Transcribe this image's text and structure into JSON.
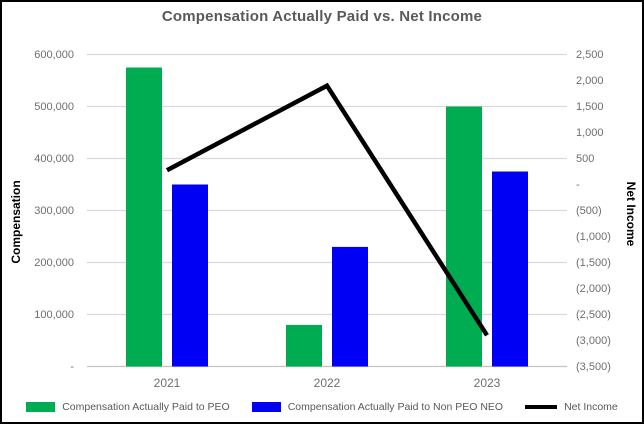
{
  "title": "Compensation Actually Paid vs. Net Income",
  "colors": {
    "peo_bar": "#00AC51",
    "non_peo_bar": "#0000F5",
    "net_income_line": "#000000",
    "gridline": "#dadada",
    "axis_line": "#c3c3c3",
    "title_text": "#595959",
    "tick_text": "#6e6e6e"
  },
  "chart_data": {
    "type": "bar",
    "subtype": "combo-bar-line-dual-axis",
    "title": "Compensation Actually Paid vs. Net Income",
    "categories": [
      "2021",
      "2022",
      "2023"
    ],
    "series": [
      {
        "name": "Compensation Actually Paid to PEO",
        "type": "bar",
        "axis": "left",
        "color": "#00AC51",
        "values": [
          575000,
          80000,
          500000
        ]
      },
      {
        "name": "Compensation Actually Paid to Non PEO NEO",
        "type": "bar",
        "axis": "left",
        "color": "#0000F5",
        "values": [
          350000,
          230000,
          375000
        ]
      },
      {
        "name": "Net Income",
        "type": "line",
        "axis": "right",
        "color": "#000000",
        "values": [
          275,
          1900,
          -2900
        ]
      }
    ],
    "left_axis": {
      "title": "Compensation",
      "min": 0,
      "max": 600000,
      "tick_step": 100000,
      "tick_labels": [
        "600,000",
        "500,000",
        "400,000",
        "300,000",
        "200,000",
        "100,000",
        "-"
      ]
    },
    "right_axis": {
      "title": "Net Income",
      "min": -3500,
      "max": 2500,
      "tick_step": 500,
      "tick_labels": [
        "2,500",
        "2,000",
        "1,500",
        "1,000",
        "500",
        "-",
        "(500)",
        "(1,000)",
        "(1,500)",
        "(2,000)",
        "(2,500)",
        "(3,000)",
        "(3,500)"
      ]
    },
    "grid": true,
    "legend_position": "bottom"
  }
}
